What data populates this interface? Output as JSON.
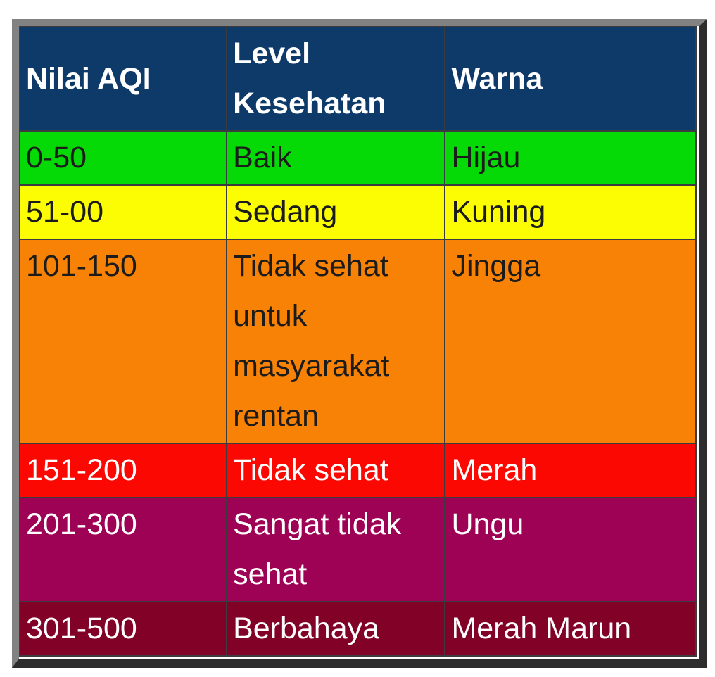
{
  "chart_data": {
    "type": "table",
    "title": "AQI (Air Quality Index) level table (Indonesian)",
    "columns": [
      "Nilai AQI",
      "Level Kesehatan",
      "Warna"
    ],
    "column_keys": [
      "aqi",
      "level",
      "warna"
    ],
    "header": {
      "bg": "#0d3a68",
      "text_color": "#ffffff"
    },
    "rows": [
      {
        "aqi": "0-50",
        "level": "Baik",
        "warna": "Hijau",
        "bg": "#06da06",
        "text_color": "#1c1c1c"
      },
      {
        "aqi": "51-00",
        "level": "Sedang",
        "warna": "Kuning",
        "bg": "#fcfc02",
        "text_color": "#1c1c1c"
      },
      {
        "aqi": "101-150",
        "level": "Tidak sehat untuk masyarakat rentan",
        "warna": "Jingga",
        "bg": "#f88205",
        "text_color": "#1c1c1c"
      },
      {
        "aqi": "151-200",
        "level": "Tidak sehat",
        "warna": "Merah",
        "bg": "#fb0802",
        "text_color": "#ffffff"
      },
      {
        "aqi": "201-300",
        "level": "Sangat tidak sehat",
        "warna": "Ungu",
        "bg": "#9e0254",
        "text_color": "#ffffff"
      },
      {
        "aqi": "301-500",
        "level": "Berbahaya",
        "warna": "Merah Marun",
        "bg": "#810226",
        "text_color": "#ffffff"
      }
    ],
    "frame_colors": {
      "outer_border_top_left": "#828282",
      "outer_border_bottom_right": "#2d2d2d",
      "cell_border": "#3b3b40"
    }
  }
}
